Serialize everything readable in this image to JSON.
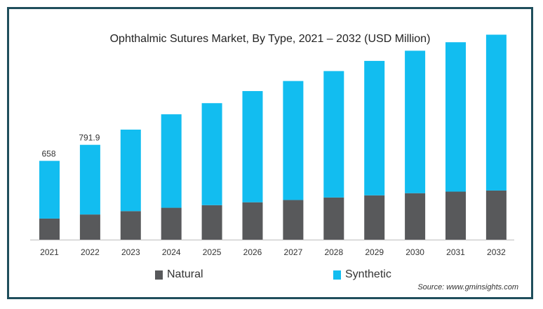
{
  "chart_data": {
    "type": "bar",
    "stacked": true,
    "title": "Ophthalmic Sutures Market, By Type, 2021 – 2032 (USD Million)",
    "categories": [
      "2021",
      "2022",
      "2023",
      "2024",
      "2025",
      "2026",
      "2027",
      "2028",
      "2029",
      "2030",
      "2031",
      "2032"
    ],
    "series": [
      {
        "name": "Natural",
        "color": "#58595b",
        "values": [
          176,
          210,
          238,
          266,
          288,
          312,
          331,
          352,
          370,
          388,
          401,
          410
        ]
      },
      {
        "name": "Synthetic",
        "color": "#12bdf0",
        "values": [
          482,
          581.9,
          681,
          781,
          852,
          929,
          994,
          1056,
          1123,
          1190,
          1248,
          1302
        ]
      }
    ],
    "data_labels": {
      "0": "658",
      "1": "791.9"
    },
    "ylim": [
      0,
      1750
    ],
    "grid": false,
    "legend_position": "bottom",
    "source": "Source: www.gminsights.com"
  }
}
